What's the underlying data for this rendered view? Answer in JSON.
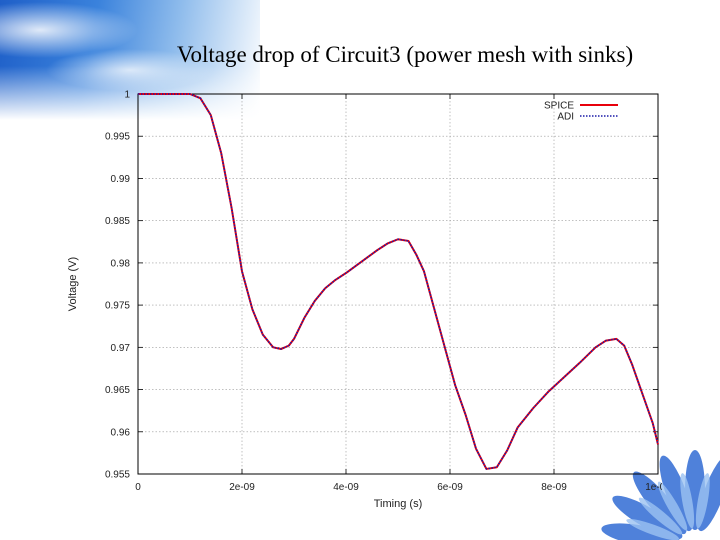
{
  "slide": {
    "title": "Voltage drop of Circuit3 (power mesh with sinks)"
  },
  "chart_data": {
    "type": "line",
    "title": "Voltage drop of Circuit3 (power mesh with sinks)",
    "xlabel": "Timing (s)",
    "ylabel": "Voltage (V)",
    "xlim": [
      0,
      1e-08
    ],
    "ylim": [
      0.955,
      1
    ],
    "x_ticks": [
      {
        "value": 0,
        "label": "0"
      },
      {
        "value": 2e-09,
        "label": "2e-09"
      },
      {
        "value": 4e-09,
        "label": "4e-09"
      },
      {
        "value": 6e-09,
        "label": "6e-09"
      },
      {
        "value": 8e-09,
        "label": "8e-09"
      },
      {
        "value": 1e-08,
        "label": "1e-08"
      }
    ],
    "y_ticks": [
      {
        "value": 0.955,
        "label": "0.955"
      },
      {
        "value": 0.96,
        "label": "0.96"
      },
      {
        "value": 0.965,
        "label": "0.965"
      },
      {
        "value": 0.97,
        "label": "0.97"
      },
      {
        "value": 0.975,
        "label": "0.975"
      },
      {
        "value": 0.98,
        "label": "0.98"
      },
      {
        "value": 0.985,
        "label": "0.985"
      },
      {
        "value": 0.99,
        "label": "0.99"
      },
      {
        "value": 0.995,
        "label": "0.995"
      },
      {
        "value": 1,
        "label": "1"
      }
    ],
    "grid": true,
    "legend_position": "top-right",
    "series": [
      {
        "name": "SPICE",
        "color": "#e8000b",
        "style": "solid",
        "x": [
          0,
          1e-09,
          1.2e-09,
          1.4e-09,
          1.6e-09,
          1.8e-09,
          2e-09,
          2.2e-09,
          2.4e-09,
          2.6e-09,
          2.75e-09,
          2.9e-09,
          3e-09,
          3.2e-09,
          3.4e-09,
          3.6e-09,
          3.8e-09,
          4e-09,
          4.2e-09,
          4.4e-09,
          4.6e-09,
          4.8e-09,
          5e-09,
          5.2e-09,
          5.35e-09,
          5.5e-09,
          5.7e-09,
          5.9e-09,
          6.1e-09,
          6.3e-09,
          6.5e-09,
          6.7e-09,
          6.9e-09,
          7.1e-09,
          7.3e-09,
          7.6e-09,
          7.9e-09,
          8.2e-09,
          8.5e-09,
          8.8e-09,
          9e-09,
          9.2e-09,
          9.35e-09,
          9.5e-09,
          9.7e-09,
          9.9e-09,
          1e-08
        ],
        "y": [
          1.0,
          1.0,
          0.9995,
          0.9975,
          0.993,
          0.9865,
          0.979,
          0.9745,
          0.9715,
          0.97,
          0.9698,
          0.9702,
          0.971,
          0.9735,
          0.9755,
          0.977,
          0.978,
          0.9788,
          0.9797,
          0.9806,
          0.9815,
          0.9823,
          0.9828,
          0.9826,
          0.981,
          0.979,
          0.9745,
          0.97,
          0.9655,
          0.962,
          0.958,
          0.9556,
          0.9558,
          0.9578,
          0.9605,
          0.9628,
          0.9648,
          0.9665,
          0.9682,
          0.97,
          0.9708,
          0.971,
          0.9702,
          0.968,
          0.9645,
          0.961,
          0.9585
        ]
      },
      {
        "name": "ADI",
        "color": "#1a1aa8",
        "style": "dotted",
        "x": [
          0,
          1e-09,
          1.2e-09,
          1.4e-09,
          1.6e-09,
          1.8e-09,
          2e-09,
          2.2e-09,
          2.4e-09,
          2.6e-09,
          2.75e-09,
          2.9e-09,
          3e-09,
          3.2e-09,
          3.4e-09,
          3.6e-09,
          3.8e-09,
          4e-09,
          4.2e-09,
          4.4e-09,
          4.6e-09,
          4.8e-09,
          5e-09,
          5.2e-09,
          5.35e-09,
          5.5e-09,
          5.7e-09,
          5.9e-09,
          6.1e-09,
          6.3e-09,
          6.5e-09,
          6.7e-09,
          6.9e-09,
          7.1e-09,
          7.3e-09,
          7.6e-09,
          7.9e-09,
          8.2e-09,
          8.5e-09,
          8.8e-09,
          9e-09,
          9.2e-09,
          9.35e-09,
          9.5e-09,
          9.7e-09,
          9.9e-09,
          1e-08
        ],
        "y": [
          1.0,
          1.0,
          0.9995,
          0.9975,
          0.993,
          0.9865,
          0.979,
          0.9745,
          0.9715,
          0.97,
          0.9698,
          0.9702,
          0.971,
          0.9735,
          0.9755,
          0.977,
          0.978,
          0.9788,
          0.9797,
          0.9806,
          0.9815,
          0.9823,
          0.9828,
          0.9826,
          0.981,
          0.979,
          0.9745,
          0.97,
          0.9655,
          0.962,
          0.958,
          0.9556,
          0.9558,
          0.9578,
          0.9605,
          0.9628,
          0.9648,
          0.9665,
          0.9682,
          0.97,
          0.9708,
          0.971,
          0.9702,
          0.968,
          0.9645,
          0.961,
          0.9585
        ]
      }
    ]
  }
}
